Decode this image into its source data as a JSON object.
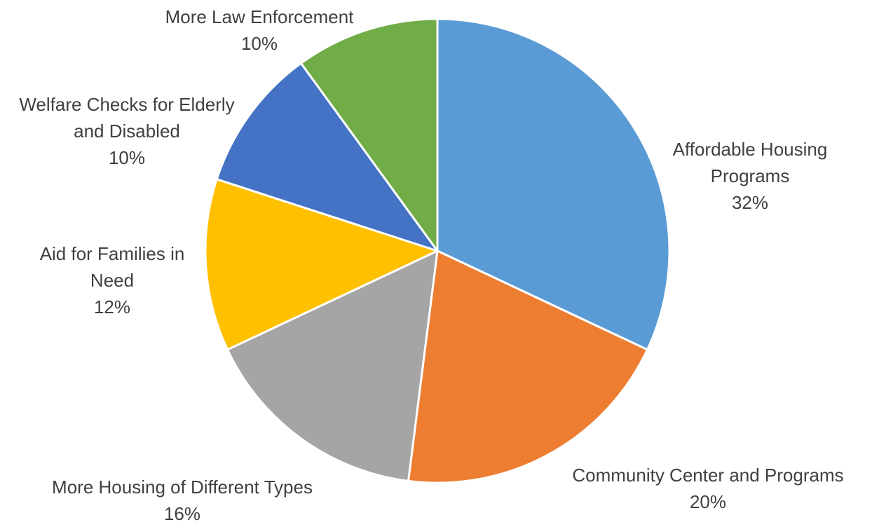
{
  "chart_data": {
    "type": "pie",
    "title": "",
    "slices": [
      {
        "label_lines": [
          "Affordable Housing",
          "Programs"
        ],
        "percent_label": "32%",
        "value": 32,
        "color": "#5B9BD5"
      },
      {
        "label_lines": [
          "Community Center and Programs"
        ],
        "percent_label": "20%",
        "value": 20,
        "color": "#ED7D31"
      },
      {
        "label_lines": [
          "More Housing of Different Types"
        ],
        "percent_label": "16%",
        "value": 16,
        "color": "#A5A5A5"
      },
      {
        "label_lines": [
          "Aid for Families in",
          "Need"
        ],
        "percent_label": "12%",
        "value": 12,
        "color": "#FFC000"
      },
      {
        "label_lines": [
          "Welfare Checks for Elderly",
          "and Disabled"
        ],
        "percent_label": "10%",
        "value": 10,
        "color": "#4472C4"
      },
      {
        "label_lines": [
          "More Law Enforcement"
        ],
        "percent_label": "10%",
        "value": 10,
        "color": "#70AD47"
      }
    ],
    "start_angle_deg": 0,
    "direction": "clockwise",
    "legend": "none",
    "data_labels": "outside"
  }
}
